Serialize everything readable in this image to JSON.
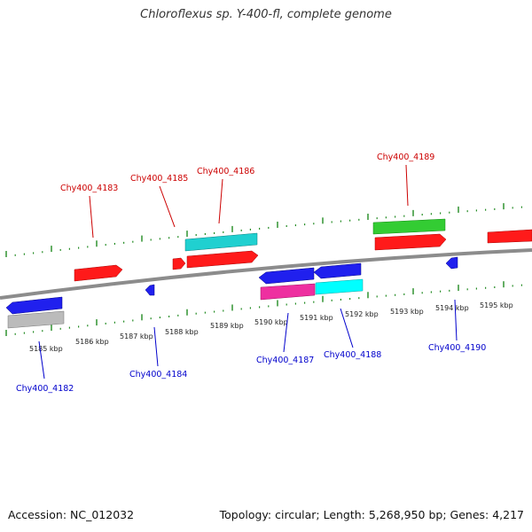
{
  "title": "Chloroflexus sp. Y-400-fl, complete genome",
  "footer": {
    "accession": "Accession: NC_012032",
    "summary": "Topology: circular; Length: 5,268,950 bp; Genes: 4,217"
  },
  "colors": {
    "backbone": "#8c8c8c",
    "tick": "#228B22",
    "forward_label": "#cc0000",
    "reverse_label": "#0000cc",
    "red": "#ff1a1a",
    "blue": "#2020ee",
    "cyan": "#20d0d0",
    "green": "#33cc33",
    "magenta": "#ee2fa0",
    "gray": "#bbbbbb"
  },
  "scale_labels": [
    "5185 kbp",
    "5186 kbp",
    "5187 kbp",
    "5188 kbp",
    "5189 kbp",
    "5190 kbp",
    "5191 kbp",
    "5192 kbp",
    "5193 kbp",
    "5194 kbp",
    "5195 kbp"
  ],
  "gene_labels": {
    "forward": [
      "Chy400_4183",
      "Chy400_4185",
      "Chy400_4186",
      "Chy400_4189"
    ],
    "reverse": [
      "Chy400_4182",
      "Chy400_4184",
      "Chy400_4187",
      "Chy400_4188",
      "Chy400_4190"
    ]
  }
}
